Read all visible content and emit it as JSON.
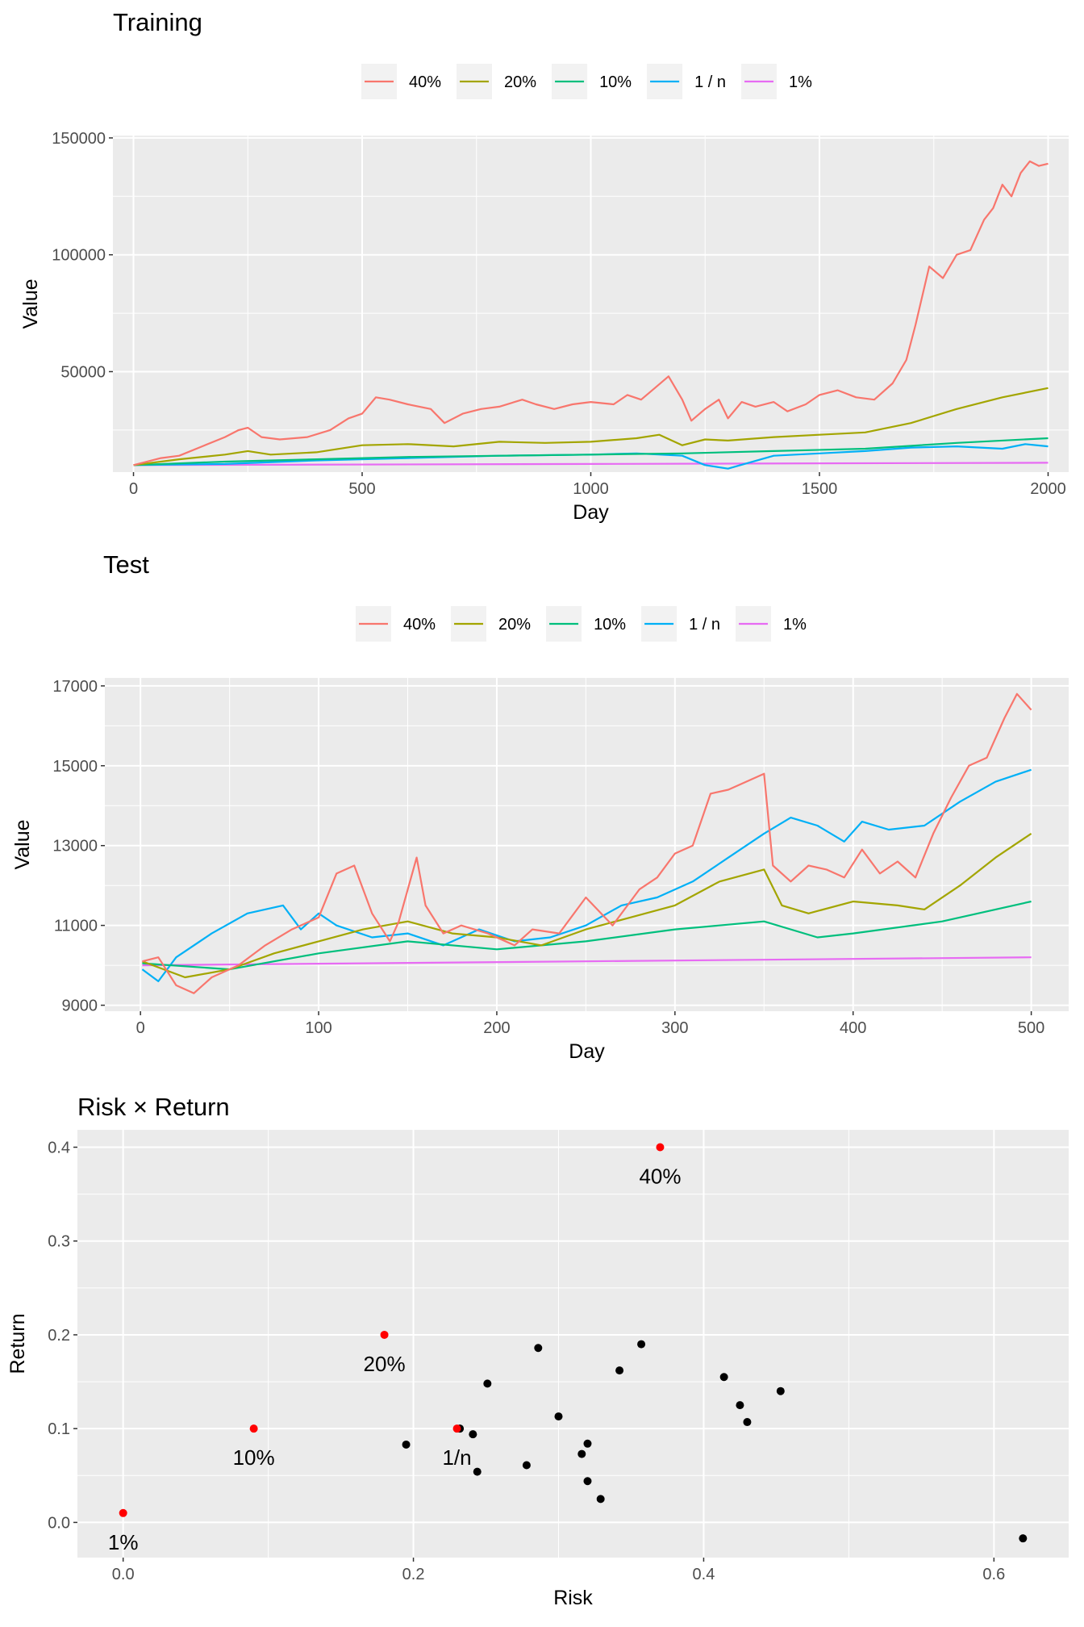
{
  "chart_data": [
    {
      "type": "line",
      "title": "Training",
      "xlabel": "Day",
      "ylabel": "Value",
      "xlim": [
        -45,
        2045
      ],
      "ylim": [
        7000,
        151000
      ],
      "xticks": [
        0,
        500,
        1000,
        1500,
        2000
      ],
      "yticks": [
        50000,
        100000,
        150000
      ],
      "grid": true,
      "legend": "top",
      "series": [
        {
          "name": "40%",
          "color": "#F8766D",
          "x": [
            0,
            60,
            100,
            150,
            200,
            230,
            250,
            280,
            320,
            380,
            430,
            470,
            500,
            530,
            560,
            600,
            650,
            680,
            720,
            760,
            800,
            850,
            880,
            920,
            960,
            1000,
            1050,
            1080,
            1110,
            1140,
            1170,
            1200,
            1220,
            1250,
            1280,
            1300,
            1330,
            1360,
            1400,
            1430,
            1470,
            1500,
            1540,
            1580,
            1620,
            1660,
            1690,
            1710,
            1740,
            1770,
            1800,
            1830,
            1860,
            1880,
            1900,
            1920,
            1940,
            1960,
            1980,
            2000
          ],
          "y": [
            10000,
            13000,
            14000,
            18000,
            22000,
            25000,
            26000,
            22000,
            21000,
            22000,
            25000,
            30000,
            32000,
            39000,
            38000,
            36000,
            34000,
            28000,
            32000,
            34000,
            35000,
            38000,
            36000,
            34000,
            36000,
            37000,
            36000,
            40000,
            38000,
            43000,
            48000,
            38000,
            29000,
            34000,
            38000,
            30000,
            37000,
            35000,
            37000,
            33000,
            36000,
            40000,
            42000,
            39000,
            38000,
            45000,
            55000,
            70000,
            95000,
            90000,
            100000,
            102000,
            115000,
            120000,
            130000,
            125000,
            135000,
            140000,
            138000,
            139000
          ]
        },
        {
          "name": "20%",
          "color": "#A3A500",
          "x": [
            0,
            100,
            200,
            250,
            300,
            400,
            500,
            600,
            700,
            800,
            900,
            1000,
            1100,
            1150,
            1200,
            1250,
            1300,
            1400,
            1500,
            1600,
            1700,
            1800,
            1900,
            2000
          ],
          "y": [
            10000,
            12500,
            14500,
            16000,
            14500,
            15500,
            18500,
            19000,
            18000,
            20000,
            19500,
            20000,
            21500,
            23000,
            18500,
            21000,
            20500,
            22000,
            23000,
            24000,
            28000,
            34000,
            39000,
            43000
          ]
        },
        {
          "name": "10%",
          "color": "#00BF7D",
          "x": [
            0,
            200,
            400,
            600,
            800,
            1000,
            1200,
            1400,
            1600,
            1800,
            2000
          ],
          "y": [
            10000,
            11500,
            12500,
            13500,
            14000,
            14500,
            15000,
            16000,
            17000,
            19500,
            21500
          ]
        },
        {
          "name": "1 / n",
          "color": "#00B0F6",
          "x": [
            0,
            200,
            400,
            600,
            800,
            1000,
            1100,
            1200,
            1250,
            1300,
            1400,
            1500,
            1600,
            1700,
            1800,
            1900,
            1950,
            2000
          ],
          "y": [
            10000,
            10500,
            12000,
            13000,
            14000,
            14500,
            15000,
            14000,
            10000,
            8500,
            14000,
            15000,
            16000,
            17500,
            18000,
            17000,
            19000,
            18000
          ]
        },
        {
          "name": "1%",
          "color": "#E76BF3",
          "x": [
            0,
            1000,
            2000
          ],
          "y": [
            10000,
            10500,
            11000
          ]
        }
      ]
    },
    {
      "type": "line",
      "title": "Test",
      "xlabel": "Day",
      "ylabel": "Value",
      "xlim": [
        -20,
        521
      ],
      "ylim": [
        8850,
        17200
      ],
      "xticks": [
        0,
        100,
        200,
        300,
        400,
        500
      ],
      "yticks": [
        9000,
        11000,
        13000,
        15000,
        17000
      ],
      "grid": true,
      "legend": "top",
      "series": [
        {
          "name": "40%",
          "color": "#F8766D",
          "x": [
            1,
            10,
            20,
            30,
            40,
            55,
            70,
            85,
            100,
            110,
            120,
            130,
            140,
            145,
            155,
            160,
            170,
            180,
            195,
            210,
            220,
            235,
            250,
            265,
            280,
            290,
            300,
            310,
            320,
            330,
            340,
            350,
            355,
            365,
            375,
            385,
            395,
            405,
            415,
            425,
            435,
            445,
            455,
            465,
            475,
            485,
            492,
            500
          ],
          "y": [
            10100,
            10200,
            9500,
            9300,
            9700,
            10000,
            10500,
            10900,
            11200,
            12300,
            12500,
            11300,
            10600,
            11100,
            12700,
            11500,
            10800,
            11000,
            10800,
            10500,
            10900,
            10800,
            11700,
            11000,
            11900,
            12200,
            12800,
            13000,
            14300,
            14400,
            14600,
            14800,
            12500,
            12100,
            12500,
            12400,
            12200,
            12900,
            12300,
            12600,
            12200,
            13300,
            14200,
            15000,
            15200,
            16200,
            16800,
            16400
          ]
        },
        {
          "name": "20%",
          "color": "#A3A500",
          "x": [
            1,
            25,
            50,
            75,
            100,
            125,
            150,
            175,
            200,
            225,
            250,
            275,
            300,
            325,
            350,
            360,
            375,
            400,
            425,
            440,
            460,
            480,
            500
          ],
          "y": [
            10100,
            9700,
            9900,
            10300,
            10600,
            10900,
            11100,
            10800,
            10700,
            10500,
            10900,
            11200,
            11500,
            12100,
            12400,
            11500,
            11300,
            11600,
            11500,
            11400,
            12000,
            12700,
            13300
          ]
        },
        {
          "name": "10%",
          "color": "#00BF7D",
          "x": [
            1,
            50,
            100,
            150,
            200,
            250,
            300,
            350,
            380,
            400,
            450,
            500
          ],
          "y": [
            10050,
            9900,
            10300,
            10600,
            10400,
            10600,
            10900,
            11100,
            10700,
            10800,
            11100,
            11600
          ]
        },
        {
          "name": "1 / n",
          "color": "#00B0F6",
          "x": [
            1,
            10,
            20,
            40,
            60,
            80,
            90,
            100,
            110,
            130,
            150,
            170,
            190,
            210,
            230,
            250,
            270,
            290,
            310,
            330,
            350,
            365,
            380,
            395,
            405,
            420,
            440,
            460,
            480,
            500
          ],
          "y": [
            9900,
            9600,
            10200,
            10800,
            11300,
            11500,
            10900,
            11300,
            11000,
            10700,
            10800,
            10500,
            10900,
            10600,
            10700,
            11000,
            11500,
            11700,
            12100,
            12700,
            13300,
            13700,
            13500,
            13100,
            13600,
            13400,
            13500,
            14100,
            14600,
            14900
          ]
        },
        {
          "name": "1%",
          "color": "#E76BF3",
          "x": [
            1,
            500
          ],
          "y": [
            10000,
            10200
          ]
        }
      ]
    },
    {
      "type": "scatter",
      "title": "Risk × Return",
      "xlabel": "Risk",
      "ylabel": "Return",
      "xlim": [
        -0.0315,
        0.6515
      ],
      "ylim": [
        -0.0375,
        0.4185
      ],
      "xticks": [
        0.0,
        0.2,
        0.4,
        0.6
      ],
      "xtick_labels": [
        "0.0",
        "0.2",
        "0.4",
        "0.6"
      ],
      "yticks": [
        0.0,
        0.1,
        0.2,
        0.3,
        0.4
      ],
      "ytick_labels": [
        "0.0",
        "0.1",
        "0.2",
        "0.3",
        "0.4"
      ],
      "grid": true,
      "highlighted": [
        {
          "label": "1%",
          "x": 0.0,
          "y": 0.01,
          "color": "#FF0000"
        },
        {
          "label": "10%",
          "x": 0.09,
          "y": 0.1,
          "color": "#FF0000"
        },
        {
          "label": "20%",
          "x": 0.18,
          "y": 0.2,
          "color": "#FF0000"
        },
        {
          "label": "1/n",
          "x": 0.23,
          "y": 0.1,
          "color": "#FF0000"
        },
        {
          "label": "40%",
          "x": 0.37,
          "y": 0.4,
          "color": "#FF0000"
        }
      ],
      "points": [
        {
          "x": 0.195,
          "y": 0.083
        },
        {
          "x": 0.232,
          "y": 0.1
        },
        {
          "x": 0.241,
          "y": 0.094
        },
        {
          "x": 0.244,
          "y": 0.054
        },
        {
          "x": 0.251,
          "y": 0.148
        },
        {
          "x": 0.278,
          "y": 0.061
        },
        {
          "x": 0.286,
          "y": 0.186
        },
        {
          "x": 0.3,
          "y": 0.113
        },
        {
          "x": 0.316,
          "y": 0.073
        },
        {
          "x": 0.32,
          "y": 0.084
        },
        {
          "x": 0.32,
          "y": 0.044
        },
        {
          "x": 0.329,
          "y": 0.025
        },
        {
          "x": 0.342,
          "y": 0.162
        },
        {
          "x": 0.357,
          "y": 0.19
        },
        {
          "x": 0.414,
          "y": 0.155
        },
        {
          "x": 0.425,
          "y": 0.125
        },
        {
          "x": 0.43,
          "y": 0.107
        },
        {
          "x": 0.453,
          "y": 0.14
        },
        {
          "x": 0.62,
          "y": -0.017
        }
      ]
    }
  ]
}
